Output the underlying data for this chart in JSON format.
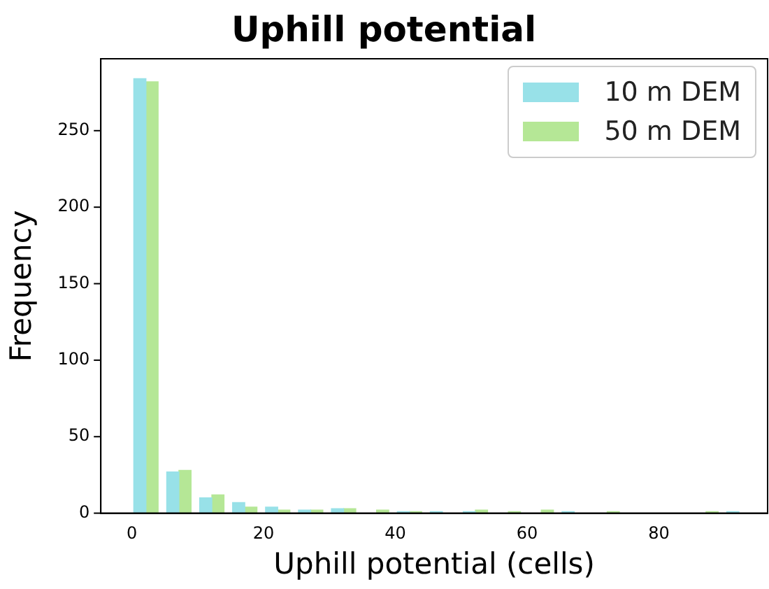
{
  "chart_data": {
    "type": "histogram",
    "title": "Uphill potential",
    "xlabel": "Uphill potential (cells)",
    "ylabel": "Frequency",
    "bins": [
      0,
      5,
      10,
      15,
      20,
      25,
      30,
      35,
      40,
      45,
      50,
      55,
      60,
      65,
      70,
      75,
      80,
      85,
      90,
      95
    ],
    "series": [
      {
        "name": "10 m DEM",
        "color": "#98e1e8",
        "values": [
          284,
          27,
          10,
          7,
          4,
          2,
          3,
          0,
          1,
          1,
          1,
          0,
          0,
          1,
          0,
          0,
          0,
          0,
          1
        ]
      },
      {
        "name": "50 m DEM",
        "color": "#b5e796",
        "values": [
          282,
          28,
          12,
          4,
          2,
          2,
          3,
          2,
          1,
          0,
          2,
          1,
          2,
          0,
          1,
          0,
          0,
          1,
          0
        ]
      }
    ],
    "xlim": [
      -4.7,
      96.5
    ],
    "xticks": [
      0,
      20,
      40,
      60,
      80
    ],
    "ylim": [
      0,
      297
    ],
    "yticks": [
      0,
      50,
      100,
      150,
      200,
      250
    ],
    "grid": false,
    "legend": "top right"
  }
}
